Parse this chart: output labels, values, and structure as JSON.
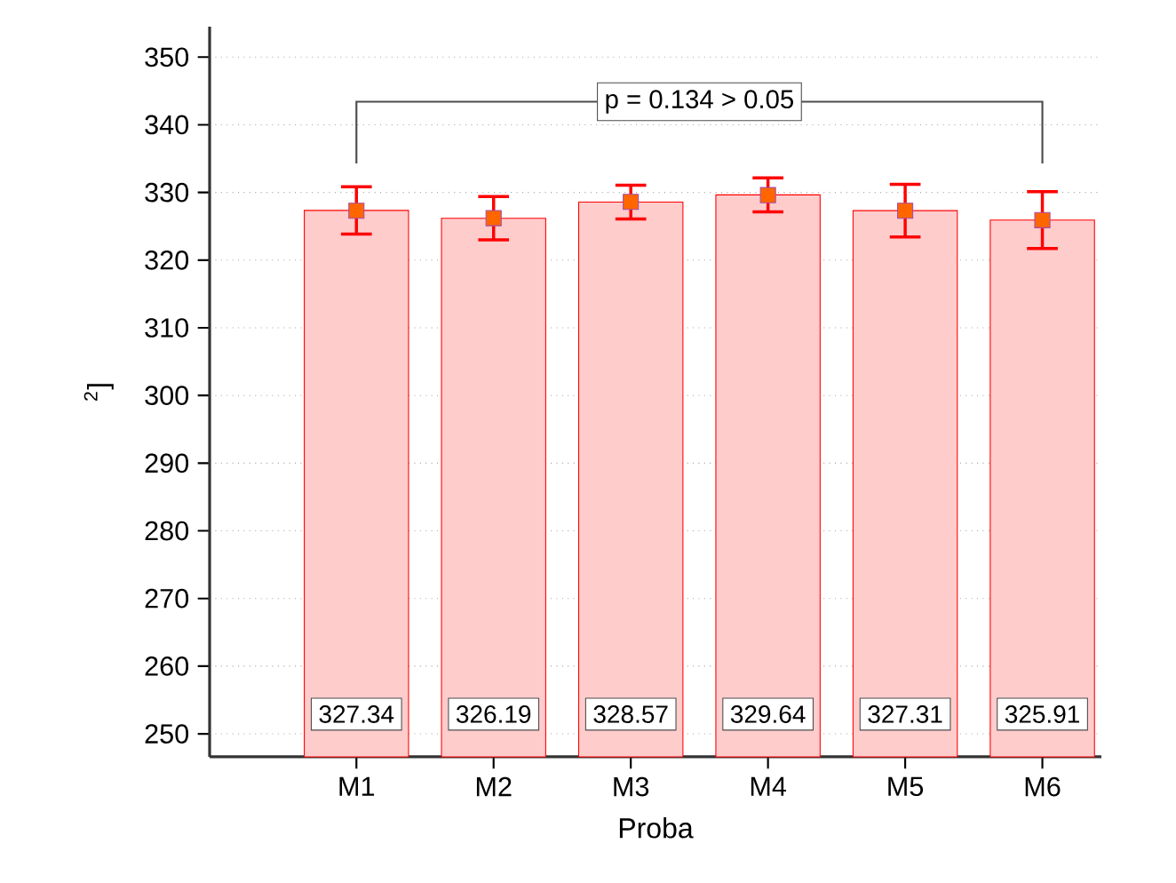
{
  "chart_data": {
    "type": "bar",
    "xlabel": "Proba",
    "ylabel": "$^{2}$]",
    "categories": [
      "M1",
      "M2",
      "M3",
      "M4",
      "M5",
      "M6"
    ],
    "series": [
      {
        "color": "#ff0000",
        "values": [
          327.34,
          326.19,
          328.57,
          329.64,
          327.31,
          325.91
        ],
        "errors": [
          3.5,
          3.2,
          2.5,
          2.5,
          3.9,
          4.2
        ],
        "data_labels": true
      },
      {
        "type": "scatter",
        "color": "#ff6600",
        "marker": "square",
        "x": [
          "M1",
          "M2",
          "M3",
          "M4",
          "M5",
          "M6"
        ],
        "values": [
          327.3,
          326.2,
          328.6,
          329.6,
          327.3,
          325.9
        ]
      }
    ],
    "ylim": [
      246.6,
      354.5
    ],
    "yticks": [
      250,
      260,
      270,
      280,
      290,
      300,
      310,
      320,
      330,
      340,
      350
    ],
    "grid": "y",
    "annotations": [
      "p = 0.134 > 0.05"
    ]
  }
}
